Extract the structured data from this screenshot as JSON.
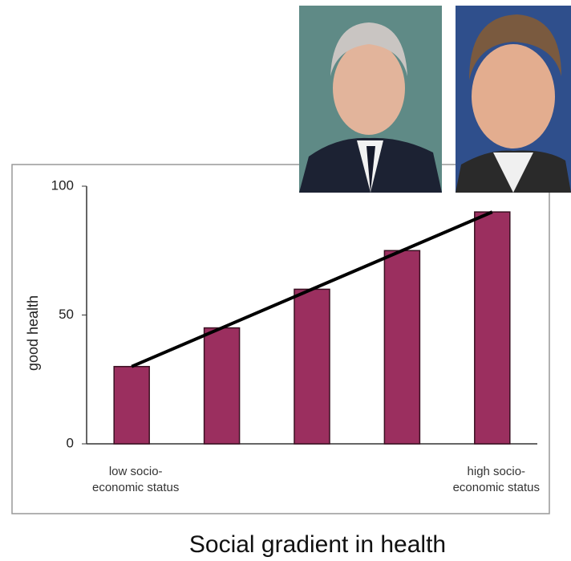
{
  "chart_data": {
    "type": "bar",
    "title": "Social gradient in health",
    "y_label": "good health",
    "categories": [
      "low socio-economic status",
      null,
      null,
      null,
      "high socio-economic status"
    ],
    "values": [
      30,
      45,
      60,
      75,
      90
    ],
    "color": "#9b2f5f",
    "trend_line": true,
    "ylim": [
      0,
      100
    ],
    "yticks": [
      0,
      50,
      100
    ],
    "grid": false
  }
}
